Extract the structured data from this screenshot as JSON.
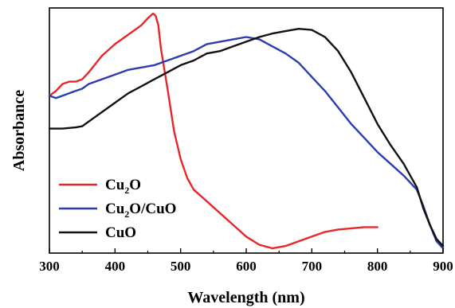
{
  "chart_data": {
    "type": "line",
    "xlabel": "Wavelength (nm)",
    "ylabel": "Absorbance",
    "xlim": [
      300,
      900
    ],
    "ylim": [
      0,
      1
    ],
    "xticks": [
      "300",
      "400",
      "500",
      "600",
      "700",
      "800",
      "900"
    ],
    "yticks_shown": false,
    "grid": false,
    "legend_position": "bottom-left",
    "series": [
      {
        "name": "Cu2O",
        "name_main": "Cu",
        "name_sub": "2",
        "name_tail": "O",
        "color": "#e8262a",
        "points": [
          [
            300,
            0.65
          ],
          [
            310,
            0.67
          ],
          [
            320,
            0.7
          ],
          [
            330,
            0.71
          ],
          [
            340,
            0.71
          ],
          [
            350,
            0.72
          ],
          [
            360,
            0.75
          ],
          [
            380,
            0.82
          ],
          [
            400,
            0.87
          ],
          [
            420,
            0.91
          ],
          [
            440,
            0.95
          ],
          [
            450,
            0.98
          ],
          [
            458,
            1.0
          ],
          [
            462,
            0.99
          ],
          [
            466,
            0.95
          ],
          [
            470,
            0.85
          ],
          [
            480,
            0.68
          ],
          [
            490,
            0.5
          ],
          [
            500,
            0.38
          ],
          [
            510,
            0.3
          ],
          [
            520,
            0.25
          ],
          [
            540,
            0.2
          ],
          [
            560,
            0.15
          ],
          [
            580,
            0.1
          ],
          [
            600,
            0.05
          ],
          [
            620,
            0.015
          ],
          [
            640,
            0.0
          ],
          [
            660,
            0.01
          ],
          [
            680,
            0.03
          ],
          [
            700,
            0.05
          ],
          [
            720,
            0.07
          ],
          [
            740,
            0.08
          ],
          [
            760,
            0.085
          ],
          [
            780,
            0.09
          ],
          [
            800,
            0.09
          ]
        ]
      },
      {
        "name": "Cu2O/CuO",
        "name_main": "Cu",
        "name_sub": "2",
        "name_tail": "O/CuO",
        "color": "#2b3bb0",
        "points": [
          [
            300,
            0.65
          ],
          [
            310,
            0.64
          ],
          [
            320,
            0.65
          ],
          [
            330,
            0.66
          ],
          [
            340,
            0.67
          ],
          [
            350,
            0.68
          ],
          [
            360,
            0.7
          ],
          [
            380,
            0.72
          ],
          [
            400,
            0.74
          ],
          [
            420,
            0.76
          ],
          [
            440,
            0.77
          ],
          [
            460,
            0.78
          ],
          [
            480,
            0.8
          ],
          [
            500,
            0.82
          ],
          [
            520,
            0.84
          ],
          [
            540,
            0.87
          ],
          [
            560,
            0.88
          ],
          [
            580,
            0.89
          ],
          [
            600,
            0.9
          ],
          [
            620,
            0.89
          ],
          [
            640,
            0.86
          ],
          [
            660,
            0.83
          ],
          [
            680,
            0.79
          ],
          [
            700,
            0.73
          ],
          [
            720,
            0.67
          ],
          [
            740,
            0.6
          ],
          [
            760,
            0.53
          ],
          [
            780,
            0.47
          ],
          [
            800,
            0.41
          ],
          [
            820,
            0.36
          ],
          [
            840,
            0.31
          ],
          [
            860,
            0.25
          ],
          [
            870,
            0.18
          ],
          [
            880,
            0.1
          ],
          [
            890,
            0.03
          ],
          [
            900,
            0.0
          ]
        ]
      },
      {
        "name": "CuO",
        "name_main": "CuO",
        "name_sub": "",
        "name_tail": "",
        "color": "#111111",
        "points": [
          [
            300,
            0.51
          ],
          [
            320,
            0.51
          ],
          [
            340,
            0.515
          ],
          [
            350,
            0.52
          ],
          [
            360,
            0.54
          ],
          [
            380,
            0.58
          ],
          [
            400,
            0.62
          ],
          [
            420,
            0.66
          ],
          [
            440,
            0.69
          ],
          [
            460,
            0.72
          ],
          [
            480,
            0.75
          ],
          [
            500,
            0.78
          ],
          [
            520,
            0.8
          ],
          [
            540,
            0.83
          ],
          [
            560,
            0.84
          ],
          [
            580,
            0.86
          ],
          [
            600,
            0.88
          ],
          [
            620,
            0.9
          ],
          [
            640,
            0.915
          ],
          [
            660,
            0.925
          ],
          [
            680,
            0.935
          ],
          [
            700,
            0.93
          ],
          [
            720,
            0.9
          ],
          [
            740,
            0.84
          ],
          [
            760,
            0.75
          ],
          [
            780,
            0.64
          ],
          [
            800,
            0.53
          ],
          [
            820,
            0.44
          ],
          [
            840,
            0.36
          ],
          [
            850,
            0.31
          ],
          [
            860,
            0.26
          ],
          [
            870,
            0.17
          ],
          [
            880,
            0.1
          ],
          [
            890,
            0.04
          ],
          [
            900,
            0.01
          ]
        ]
      }
    ]
  }
}
